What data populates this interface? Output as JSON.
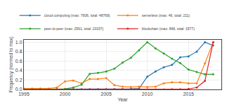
{
  "chart_data": {
    "type": "line",
    "xlabel": "Year",
    "ylabel": "Frequency (normed to max)",
    "x": [
      1995,
      1996,
      1997,
      1998,
      1999,
      2000,
      2001,
      2002,
      2003,
      2004,
      2005,
      2006,
      2007,
      2008,
      2009,
      2010,
      2011,
      2012,
      2013,
      2014,
      2015,
      2016,
      2017,
      2018
    ],
    "xlim": [
      1995,
      2019
    ],
    "xticks": [
      1995,
      2000,
      2005,
      2010,
      2015
    ],
    "ylim": [
      0,
      1.05
    ],
    "yticks": [
      {
        "value": 0,
        "label": "0.0"
      },
      0.2,
      0.4,
      0.6,
      0.8,
      {
        "value": 1,
        "label": "1.0"
      }
    ],
    "grid": true,
    "legend": "upper left",
    "marker": "circle",
    "series": [
      {
        "name": "cloud-computing (max: 7606, total: 48769)",
        "color": "#1f77b4",
        "values": [
          0.003,
          0.003,
          0.003,
          0.003,
          0.003,
          0.004,
          0.004,
          0.004,
          0.004,
          0.004,
          0.005,
          0.006,
          0.008,
          0.012,
          0.02,
          0.27,
          0.38,
          0.47,
          0.52,
          0.68,
          0.7,
          0.8,
          1.0,
          0.93
        ]
      },
      {
        "name": "serverless (max: 46, total: 211)",
        "color": "#ff7f0e",
        "values": [
          0.02,
          0.02,
          0.02,
          0.02,
          0.04,
          0.17,
          0.19,
          0.13,
          0.22,
          0.22,
          0.24,
          0.09,
          0.06,
          0.05,
          0.06,
          0.05,
          0.06,
          0.13,
          0.15,
          0.15,
          0.13,
          0.13,
          0.55,
          1.0
        ]
      },
      {
        "name": "peer-to-peer (max: 2591, total: 23157)",
        "color": "#2ca02c",
        "values": [
          0.0,
          0.0,
          0.0,
          0.0,
          0.005,
          0.012,
          0.04,
          0.1,
          0.33,
          0.35,
          0.38,
          0.44,
          0.57,
          0.67,
          0.83,
          1.0,
          0.87,
          0.76,
          0.65,
          0.56,
          0.42,
          0.37,
          0.32,
          0.32
        ]
      },
      {
        "name": "blockchain (max: 868, total: 1577)",
        "color": "#d62728",
        "values": [
          0.0,
          0.0,
          0.0,
          0.0,
          0.0,
          0.0,
          0.0,
          0.0,
          0.0,
          0.0,
          0.0,
          0.0,
          0.0,
          0.0,
          0.0,
          0.0,
          0.0,
          0.0,
          0.005,
          0.005,
          0.01,
          0.04,
          0.18,
          1.0
        ]
      }
    ]
  }
}
